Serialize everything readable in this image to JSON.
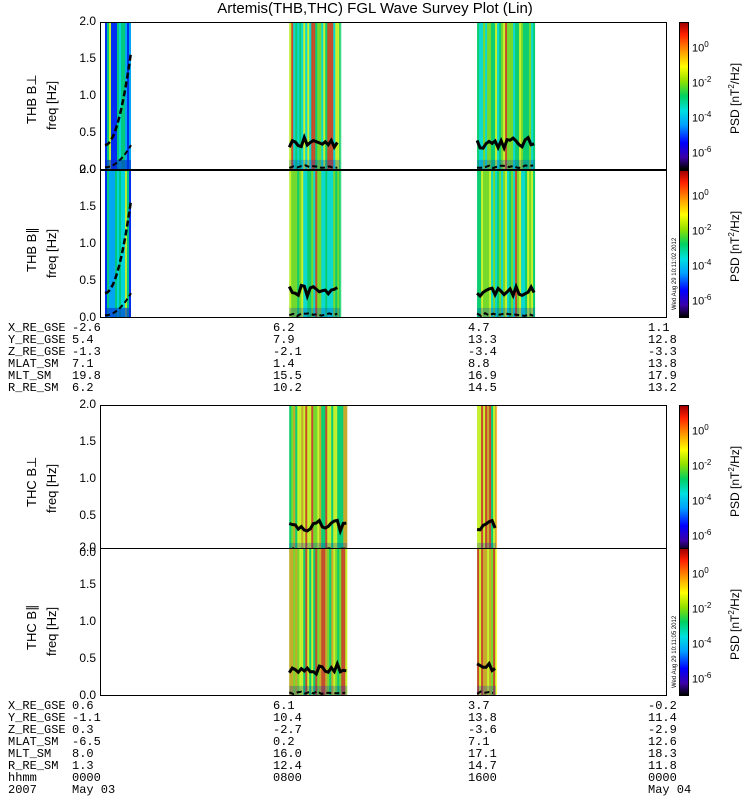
{
  "chart_data": {
    "type": "heatmap",
    "title": "Artemis(THB,THC) FGL Wave Survey Plot (Lin)",
    "colorbar": {
      "label_parts": [
        "PSD [nT",
        "2",
        "/Hz]"
      ],
      "ticks": [
        {
          "base": "10",
          "exp": "0",
          "v": 0
        },
        {
          "base": "10",
          "exp": "-2",
          "v": -2
        },
        {
          "base": "10",
          "exp": "-4",
          "v": -4
        },
        {
          "base": "10",
          "exp": "-6",
          "v": -6
        }
      ],
      "log_range": [
        -7,
        1.5
      ],
      "colors": [
        "#000000",
        "#3b00a8",
        "#0000ff",
        "#00a0ff",
        "#00e0e0",
        "#00d060",
        "#90e000",
        "#ffff00",
        "#ffa000",
        "#ff2000",
        "#a00000"
      ]
    },
    "ylim": [
      0,
      2.0
    ],
    "yticks": [
      "0.0",
      "0.5",
      "1.0",
      "1.5",
      "2.0"
    ],
    "x_hours": [
      0,
      24
    ],
    "panels": [
      {
        "probe": "THB",
        "comp": "B⊥",
        "ylabel_probe": "THB B⊥",
        "ylabel_freq": "freq [Hz]",
        "segments": [
          [
            0.17,
            1.27
          ],
          [
            7.97,
            10.12
          ],
          [
            15.92,
            18.37
          ]
        ],
        "stamp": ""
      },
      {
        "probe": "THB",
        "comp": "B∥",
        "ylabel_probe": "THB B∥",
        "ylabel_freq": "freq [Hz]",
        "segments": [
          [
            0.17,
            1.27
          ],
          [
            7.97,
            10.12
          ],
          [
            15.92,
            18.37
          ]
        ],
        "stamp": "Wed Aug 29 10:11:02 2012"
      },
      {
        "probe": "THC",
        "comp": "B⊥",
        "ylabel_probe": "THC B⊥",
        "ylabel_freq": "freq [Hz]",
        "segments": [
          [
            7.97,
            10.42
          ],
          [
            15.92,
            16.72
          ]
        ],
        "stamp": ""
      },
      {
        "probe": "THC",
        "comp": "B∥",
        "ylabel_probe": "THC B∥",
        "ylabel_freq": "freq [Hz]",
        "segments": [
          [
            7.97,
            10.42
          ],
          [
            15.92,
            16.72
          ]
        ],
        "stamp": "Wed Aug 29 10:11:05 2012"
      }
    ]
  },
  "ephemeris_thb": [
    {
      "label": "X_RE_GSE",
      "values": [
        "-2.6",
        "6.2",
        "4.7",
        "1.1"
      ]
    },
    {
      "label": "Y_RE_GSE",
      "values": [
        "5.4",
        "7.9",
        "13.3",
        "12.8"
      ]
    },
    {
      "label": "Z_RE_GSE",
      "values": [
        "-1.3",
        "-2.1",
        "-3.4",
        "-3.3"
      ]
    },
    {
      "label": "MLAT_SM",
      "values": [
        "7.1",
        "1.4",
        "8.8",
        "13.8"
      ]
    },
    {
      "label": "MLT_SM",
      "values": [
        "19.8",
        "15.5",
        "16.9",
        "17.9"
      ]
    },
    {
      "label": "R_RE_SM",
      "values": [
        "6.2",
        "10.2",
        "14.5",
        "13.2"
      ]
    }
  ],
  "ephemeris_thc": [
    {
      "label": "X_RE_GSE",
      "values": [
        "0.6",
        "6.1",
        "3.7",
        "-0.2"
      ]
    },
    {
      "label": "Y_RE_GSE",
      "values": [
        "-1.1",
        "10.4",
        "13.8",
        "11.4"
      ]
    },
    {
      "label": "Z_RE_GSE",
      "values": [
        "0.3",
        "-2.7",
        "-3.6",
        "-2.9"
      ]
    },
    {
      "label": "MLAT_SM",
      "values": [
        "-6.5",
        "0.2",
        "7.1",
        "12.6"
      ]
    },
    {
      "label": "MLT_SM",
      "values": [
        "8.0",
        "16.0",
        "17.1",
        "18.3"
      ]
    },
    {
      "label": "R_RE_SM",
      "values": [
        "1.3",
        "12.4",
        "14.7",
        "11.8"
      ]
    },
    {
      "label": "hhmm",
      "values": [
        "0000",
        "0800",
        "1600",
        "0000"
      ]
    }
  ],
  "date_row": {
    "label": "2007",
    "values": [
      "May 03",
      "",
      "",
      "May 04"
    ]
  }
}
